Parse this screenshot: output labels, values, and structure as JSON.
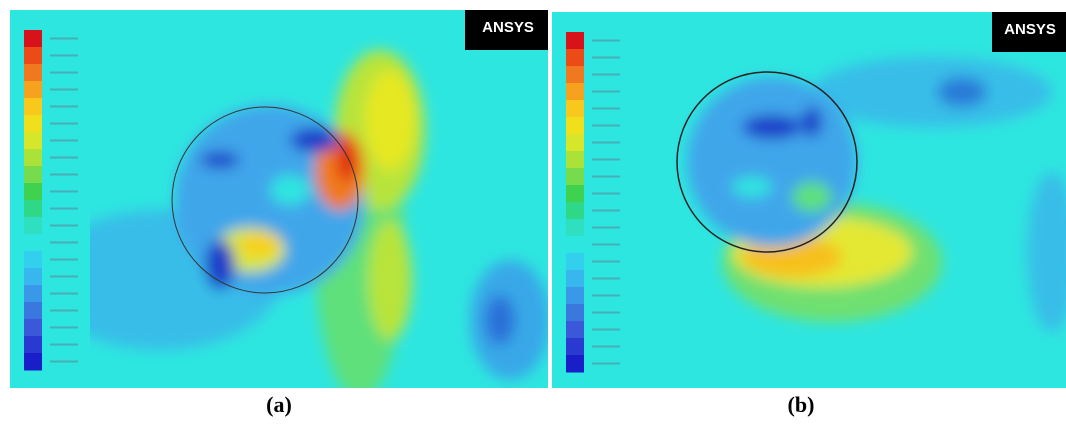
{
  "panels": [
    {
      "logo": "ANSYS",
      "caption": "(a)"
    },
    {
      "logo": "ANSYS",
      "caption": "(b)"
    }
  ]
}
